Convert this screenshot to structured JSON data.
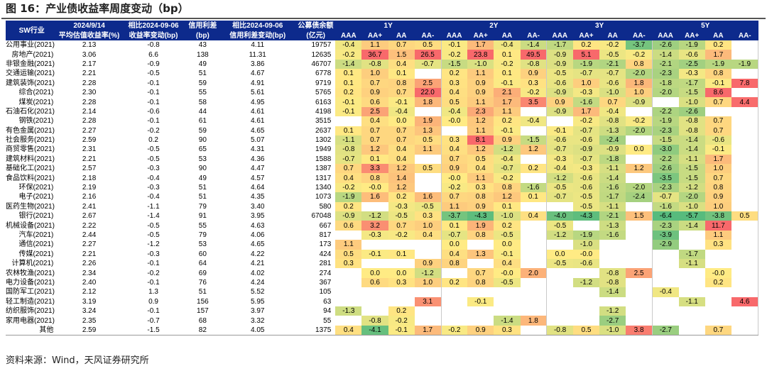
{
  "title": "图 16：产业债收益率周度变动（bp）",
  "source": "资料来源：Wind，天风证券研究所",
  "header": {
    "sw": "SW行业",
    "date1": "2024/9/14",
    "date1_sub": "平均估值收益率(%)",
    "chg1": "相比2024-09-06",
    "chg1_sub": "收益率变动(bp)",
    "spread": "信用利差",
    "spread_sub": "(bp)",
    "chg2": "相比2024-09-06",
    "chg2_sub": "信用利差变动(bp)",
    "bal": "公募债余额",
    "bal_sub": "(亿元)",
    "groups": [
      "1Y",
      "2Y",
      "3Y",
      "5Y"
    ],
    "ratings": [
      "AAA",
      "AA+",
      "AA",
      "AA-"
    ]
  },
  "rows": [
    {
      "name": "公用事业(2021)",
      "yield": "2.13",
      "ychg": "-0.8",
      "spread": "43",
      "schg": "4.11",
      "bal": "19757",
      "cells": [
        "-0.4",
        "1.1",
        "0.7",
        "0.5",
        "-0.1",
        "1.7",
        "-0.4",
        "-1.4",
        "-1.7",
        "0.2",
        "-0.2",
        "-3.7",
        "-2.6",
        "-1.9",
        "0.2",
        ""
      ]
    },
    {
      "name": "房地产(2021)",
      "yield": "3.06",
      "ychg": "6.6",
      "spread": "138",
      "schg": "11.31",
      "bal": "12635",
      "cells": [
        "-0.2",
        "36.7",
        "1.5",
        "26.5",
        "-0.2",
        "23.8",
        "0.1",
        "49.5",
        "-0.9",
        "5.1",
        "-0.5",
        "-0.2",
        "-1.4",
        "-0.6",
        "1.7",
        ""
      ]
    },
    {
      "name": "非银金融(2021)",
      "yield": "2.17",
      "ychg": "-0.9",
      "spread": "49",
      "schg": "3.86",
      "bal": "46707",
      "cells": [
        "-1.4",
        "-0.8",
        "0.4",
        "-0.7",
        "-1.5",
        "-1.0",
        "-0.2",
        "-0.8",
        "-0.9",
        "-1.9",
        "-2.1",
        "0.8",
        "-2.1",
        "-2.5",
        "-1.9",
        "-1.9"
      ]
    },
    {
      "name": "交通运输(2021)",
      "yield": "2.21",
      "ychg": "-0.5",
      "spread": "51",
      "schg": "4.67",
      "bal": "6778",
      "cells": [
        "0.1",
        "1.0",
        "0.1",
        "",
        "0.2",
        "1.1",
        "0.1",
        "0.9",
        "-0.5",
        "-0.7",
        "-0.7",
        "-2.0",
        "-2.3",
        "-0.3",
        "0.8",
        ""
      ]
    },
    {
      "name": "建筑装饰(2021)",
      "yield": "2.28",
      "ychg": "-0.1",
      "spread": "59",
      "schg": "4.91",
      "bal": "9719",
      "cells": [
        "0.1",
        "0.7",
        "0.8",
        "2.5",
        "0.3",
        "0.9",
        "-0.1",
        "0.3",
        "-0.6",
        "1.0",
        "-0.6",
        "1.8",
        "-1.8",
        "-1.7",
        "-0.1",
        "7.8"
      ]
    },
    {
      "name": "综合(2021)",
      "yield": "2.30",
      "ychg": "-0.1",
      "spread": "55",
      "schg": "5.61",
      "bal": "5765",
      "cells": [
        "0.2",
        "0.9",
        "0.7",
        "22.0",
        "0.4",
        "0.9",
        "2.1",
        "-0.2",
        "-0.9",
        "-0.3",
        "-1.0",
        "1.0",
        "-2.0",
        "-1.5",
        "8.6",
        ""
      ]
    },
    {
      "name": "煤炭(2021)",
      "yield": "2.28",
      "ychg": "-0.1",
      "spread": "58",
      "schg": "4.95",
      "bal": "6163",
      "cells": [
        "-0.1",
        "0.6",
        "-0.1",
        "1.8",
        "0.5",
        "1.1",
        "1.7",
        "3.5",
        "0.9",
        "-1.6",
        "0.7",
        "-0.9",
        "",
        "-1.0",
        "0.7",
        "4.4"
      ]
    },
    {
      "name": "石油石化(2021)",
      "yield": "2.14",
      "ychg": "-0.6",
      "spread": "44",
      "schg": "4.61",
      "bal": "4198",
      "cells": [
        "-0.1",
        "2.5",
        "-0.4",
        "",
        "-0.4",
        "2.3",
        "1.1",
        "",
        "-0.9",
        "1.7",
        "-0.4",
        "",
        "-2.2",
        "-2.6",
        "",
        ""
      ]
    },
    {
      "name": "钢铁(2021)",
      "yield": "2.28",
      "ychg": "-0.1",
      "spread": "61",
      "schg": "4.61",
      "bal": "3515",
      "cells": [
        "",
        "0.4",
        "0.0",
        "1.9",
        "-0.0",
        "1.2",
        "0.2",
        "-0.4",
        "",
        "-0.2",
        "-0.8",
        "-0.2",
        "-1.9",
        "-0.8",
        "0.7",
        ""
      ]
    },
    {
      "name": "有色金属(2021)",
      "yield": "2.27",
      "ychg": "-0.2",
      "spread": "59",
      "schg": "4.65",
      "bal": "2637",
      "cells": [
        "0.1",
        "0.7",
        "0.7",
        "1.3",
        "",
        "1.1",
        "-0.1",
        "",
        "-0.1",
        "-0.7",
        "-1.3",
        "-2.0",
        "-2.3",
        "-0.8",
        "0.7",
        ""
      ]
    },
    {
      "name": "社会服务(2021)",
      "yield": "2.59",
      "ychg": "0.2",
      "spread": "90",
      "schg": "5.07",
      "bal": "1302",
      "cells": [
        "-1.1",
        "0.7",
        "0.7",
        "0.5",
        "0.3",
        "8.1",
        "0.9",
        "-1.5",
        "-0.6",
        "-0.6",
        "-2.4",
        "",
        "-1.5",
        "-1.4",
        "-0.6",
        ""
      ]
    },
    {
      "name": "商贸零售(2021)",
      "yield": "2.31",
      "ychg": "-0.5",
      "spread": "65",
      "schg": "4.31",
      "bal": "1949",
      "cells": [
        "-0.8",
        "1.2",
        "0.4",
        "1.1",
        "0.4",
        "1.2",
        "-1.2",
        "1.2",
        "-0.7",
        "-0.9",
        "-0.9",
        "0.0",
        "-3.0",
        "-1.4",
        "-0.1",
        ""
      ]
    },
    {
      "name": "建筑材料(2021)",
      "yield": "2.21",
      "ychg": "-0.5",
      "spread": "53",
      "schg": "4.36",
      "bal": "1588",
      "cells": [
        "-0.7",
        "0.1",
        "0.4",
        "",
        "0.7",
        "0.5",
        "-0.4",
        "",
        "-0.3",
        "-0.7",
        "-1.8",
        "",
        "-2.2",
        "-1.1",
        "1.7",
        ""
      ]
    },
    {
      "name": "基础化工(2021)",
      "yield": "2.57",
      "ychg": "-0.3",
      "spread": "90",
      "schg": "4.47",
      "bal": "1387",
      "cells": [
        "0.7",
        "3.3",
        "1.2",
        "0.5",
        "0.9",
        "0.4",
        "-0.7",
        "0.2",
        "-0.4",
        "-0.3",
        "-1.1",
        "1.2",
        "-2.6",
        "-1.5",
        "1.0",
        ""
      ]
    },
    {
      "name": "食品饮料(2021)",
      "yield": "2.18",
      "ychg": "-0.4",
      "spread": "49",
      "schg": "4.57",
      "bal": "1317",
      "cells": [
        "0.4",
        "0.8",
        "1.4",
        "",
        "-0.0",
        "1.1",
        "-0.2",
        "",
        "-1.2",
        "-0.6",
        "-1.4",
        "",
        "-3.5",
        "-1.5",
        "0.7",
        ""
      ]
    },
    {
      "name": "环保(2021)",
      "yield": "2.19",
      "ychg": "-0.3",
      "spread": "51",
      "schg": "4.64",
      "bal": "1340",
      "cells": [
        "-0.2",
        "-0.0",
        "1.2",
        "",
        "-0.2",
        "0.3",
        "0.8",
        "-1.6",
        "-0.5",
        "-0.6",
        "-1.6",
        "-2.0",
        "-2.3",
        "-1.2",
        "0.8",
        ""
      ]
    },
    {
      "name": "电子(2021)",
      "yield": "2.16",
      "ychg": "-0.4",
      "spread": "51",
      "schg": "4.35",
      "bal": "1073",
      "cells": [
        "-1.9",
        "1.6",
        "0.2",
        "1.6",
        "0.7",
        "0.8",
        "1.2",
        "0.1",
        "-0.7",
        "-0.5",
        "-1.7",
        "-2.4",
        "-0.7",
        "-2.0",
        "0.9",
        ""
      ]
    },
    {
      "name": "医药生物(2021)",
      "yield": "2.41",
      "ychg": "-1.1",
      "spread": "79",
      "schg": "3.40",
      "bal": "580",
      "cells": [
        "0.2",
        "",
        "-0.3",
        "-0.5",
        "1.1",
        "0.9",
        "0.1",
        "",
        "",
        "-0.5",
        "-1.1",
        "",
        "-1.6",
        "-1.0",
        "1.0",
        ""
      ]
    },
    {
      "name": "银行(2021)",
      "yield": "2.67",
      "ychg": "-1.4",
      "spread": "91",
      "schg": "3.95",
      "bal": "67048",
      "cells": [
        "-0.9",
        "-1.2",
        "-0.5",
        "0.3",
        "-3.7",
        "-4.3",
        "-1.0",
        "0.4",
        "-4.0",
        "-4.3",
        "-2.1",
        "1.5",
        "-6.4",
        "-5.7",
        "-3.8",
        "0.5"
      ]
    },
    {
      "name": "机械设备(2021)",
      "yield": "2.22",
      "ychg": "-0.5",
      "spread": "55",
      "schg": "4.63",
      "bal": "667",
      "cells": [
        "0.6",
        "3.2",
        "0.7",
        "1.0",
        "0.1",
        "1.9",
        "0.2",
        "",
        "-0.5",
        "",
        "-1.3",
        "",
        "-2.3",
        "-1.4",
        "11.7",
        ""
      ]
    },
    {
      "name": "汽车(2021)",
      "yield": "2.44",
      "ychg": "-0.5",
      "spread": "79",
      "schg": "4.06",
      "bal": "817",
      "cells": [
        "",
        "-0.3",
        "-0.2",
        "0.4",
        "-0.7",
        "0.8",
        "-0.5",
        "",
        "-1.2",
        "-1.9",
        "-1.6",
        "",
        "-3.9",
        "",
        "1.1",
        ""
      ]
    },
    {
      "name": "通信(2021)",
      "yield": "2.27",
      "ychg": "-1.2",
      "spread": "53",
      "schg": "4.65",
      "bal": "173",
      "cells": [
        "1.1",
        "",
        "",
        "",
        "0.0",
        "",
        "0.0",
        "",
        "",
        "-1.0",
        "",
        "",
        "-2.9",
        "",
        "0.3",
        ""
      ]
    },
    {
      "name": "传媒(2021)",
      "yield": "2.21",
      "ychg": "-0.3",
      "spread": "60",
      "schg": "4.22",
      "bal": "424",
      "cells": [
        "0.5",
        "-0.1",
        "0.1",
        "",
        "0.4",
        "1.3",
        "-0.1",
        "",
        "0.0",
        "-0.0",
        "",
        "",
        "",
        "-1.7",
        "",
        ""
      ]
    },
    {
      "name": "计算机(2021)",
      "yield": "2.26",
      "ychg": "-0.1",
      "spread": "64",
      "schg": "4.21",
      "bal": "281",
      "cells": [
        "0.3",
        "",
        "",
        "0.9",
        "0.8",
        "",
        "0.4",
        "",
        "-0.5",
        "-0.6",
        "",
        "",
        "",
        "-1.1",
        "",
        ""
      ]
    },
    {
      "name": "农林牧渔(2021)",
      "yield": "2.34",
      "ychg": "-0.2",
      "spread": "69",
      "schg": "4.02",
      "bal": "274",
      "cells": [
        "",
        "0.0",
        "0.0",
        "-1.2",
        "",
        "0.7",
        "-0.0",
        "2.0",
        "",
        "",
        "-0.8",
        "2.5",
        "",
        "",
        "-0.0",
        ""
      ]
    },
    {
      "name": "电力设备(2021)",
      "yield": "2.40",
      "ychg": "-0.1",
      "spread": "76",
      "schg": "4.24",
      "bal": "367",
      "cells": [
        "",
        "0.6",
        "0.3",
        "1.0",
        "0.2",
        "0.8",
        "-0.5",
        "",
        "",
        "-1.2",
        "-0.8",
        "",
        "",
        "",
        "0.2",
        ""
      ]
    },
    {
      "name": "国防军工(2021)",
      "yield": "2.12",
      "ychg": "1.3",
      "spread": "51",
      "schg": "5.52",
      "bal": "105",
      "cells": [
        "",
        "",
        "",
        "",
        "",
        "",
        "",
        "",
        "",
        "",
        "-1.4",
        "",
        "-0.4",
        "",
        "",
        ""
      ]
    },
    {
      "name": "轻工制造(2021)",
      "yield": "3.19",
      "ychg": "0.9",
      "spread": "156",
      "schg": "5.95",
      "bal": "63",
      "cells": [
        "",
        "",
        "",
        "3.1",
        "",
        "-0.1",
        "",
        "",
        "",
        "",
        "",
        "",
        "",
        "-1.1",
        "",
        "4.6"
      ]
    },
    {
      "name": "纺织服饰(2021)",
      "yield": "3.24",
      "ychg": "-0.1",
      "spread": "157",
      "schg": "3.97",
      "bal": "94",
      "cells": [
        "-1.3",
        "",
        "0.2",
        "",
        "",
        "",
        "",
        "",
        "",
        "",
        "-1.2",
        "",
        "",
        "",
        "",
        ""
      ]
    },
    {
      "name": "家用电器(2021)",
      "yield": "2.35",
      "ychg": "-0.7",
      "spread": "68",
      "schg": "3.32",
      "bal": "55",
      "cells": [
        "",
        "-0.8",
        "-0.2",
        "",
        "",
        "",
        "-1.4",
        "1.8",
        "",
        "",
        "-2.7",
        "",
        "",
        "",
        "",
        ""
      ]
    },
    {
      "name": "其他",
      "yield": "2.59",
      "ychg": "-1.5",
      "spread": "82",
      "schg": "4.05",
      "bal": "1375",
      "cells": [
        "0.4",
        "-4.1",
        "-0.1",
        "1.7",
        "-0.2",
        "0.9",
        "0.3",
        "",
        "-0.8",
        "0.5",
        "-1.0",
        "3.8",
        "-2.7",
        "",
        "0.7",
        ""
      ]
    }
  ]
}
